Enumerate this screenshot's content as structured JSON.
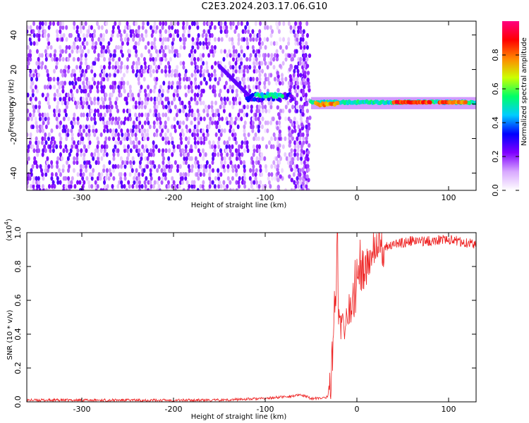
{
  "title": "C2E3.2024.203.17.06.G10",
  "chart_data": [
    {
      "type": "heatmap",
      "xlabel": "Height of straight line (km)",
      "ylabel": "Frequency (Hz)",
      "xlim": [
        -360,
        130
      ],
      "ylim": [
        -50,
        48
      ],
      "x_ticks": [
        -300,
        -200,
        -100,
        0,
        100
      ],
      "x_tick_labels": [
        "-300",
        "-200",
        "-100",
        "0",
        "100"
      ],
      "y_ticks": [
        -40,
        -20,
        0,
        20,
        40
      ],
      "y_tick_labels": [
        "-40",
        "-20",
        "0",
        "20",
        "40"
      ],
      "grid": false,
      "colorbar": {
        "label": "Normalized spectral amplitude",
        "range": [
          0,
          1
        ],
        "ticks": [
          0.0,
          0.2,
          0.4,
          0.6,
          0.8
        ],
        "tick_labels": [
          "0.0",
          "0.2",
          "0.4",
          "0.6",
          "0.8"
        ],
        "colors": [
          "#ffffff",
          "#d8a8ff",
          "#8000ff",
          "#0000ff",
          "#00ccff",
          "#00ff66",
          "#ccff00",
          "#ff8800",
          "#ff0000",
          "#ff0080"
        ]
      },
      "features": [
        {
          "x_range": [
            -360,
            -55
          ],
          "description_type": "broadband noise",
          "level": 0.2
        },
        {
          "x_range": [
            -120,
            -70
          ],
          "freq": 4,
          "level": 0.5
        },
        {
          "x_range": [
            -50,
            130
          ],
          "freq": 1,
          "level": 0.55
        },
        {
          "x_range": [
            40,
            80
          ],
          "freq": 1,
          "level": 0.85
        },
        {
          "x_range": [
            -45,
            -20
          ],
          "freq": 0,
          "level": 0.8
        }
      ]
    },
    {
      "type": "line",
      "xlabel": "Height of straight line (km)",
      "ylabel": "SNR (10 * v/v)",
      "yscale_label": "(x10",
      "yscale_exp": "4",
      "yscale_close": ")",
      "xlim": [
        -360,
        130
      ],
      "ylim": [
        0,
        1.0
      ],
      "x_ticks": [
        -300,
        -200,
        -100,
        0,
        100
      ],
      "x_tick_labels": [
        "-300",
        "-200",
        "-100",
        "0",
        "100"
      ],
      "y_ticks": [
        0.0,
        0.2,
        0.4,
        0.6,
        0.8,
        1.0
      ],
      "y_tick_labels": [
        "0.0",
        "0.2",
        "0.4",
        "0.6",
        "0.8",
        "1.0"
      ],
      "grid": false,
      "series": [
        {
          "color": "#ee2222",
          "x": [
            -360,
            -300,
            -200,
            -150,
            -100,
            -80,
            -60,
            -50,
            -40,
            -32,
            -28,
            -25,
            -23,
            -21,
            -20,
            -18,
            -15,
            -12,
            -10,
            -5,
            0,
            5,
            10,
            15,
            20,
            25,
            30,
            40,
            50,
            60,
            70,
            80,
            90,
            100,
            110,
            120,
            130
          ],
          "y": [
            0.01,
            0.01,
            0.01,
            0.01,
            0.02,
            0.03,
            0.04,
            0.02,
            0.02,
            0.03,
            0.15,
            0.45,
            0.55,
            1.0,
            0.5,
            0.45,
            0.5,
            0.48,
            0.55,
            0.6,
            0.65,
            0.75,
            0.8,
            0.85,
            0.88,
            0.9,
            0.92,
            0.93,
            0.94,
            0.95,
            0.95,
            0.95,
            0.96,
            0.96,
            0.95,
            0.94,
            0.93
          ]
        }
      ]
    }
  ]
}
